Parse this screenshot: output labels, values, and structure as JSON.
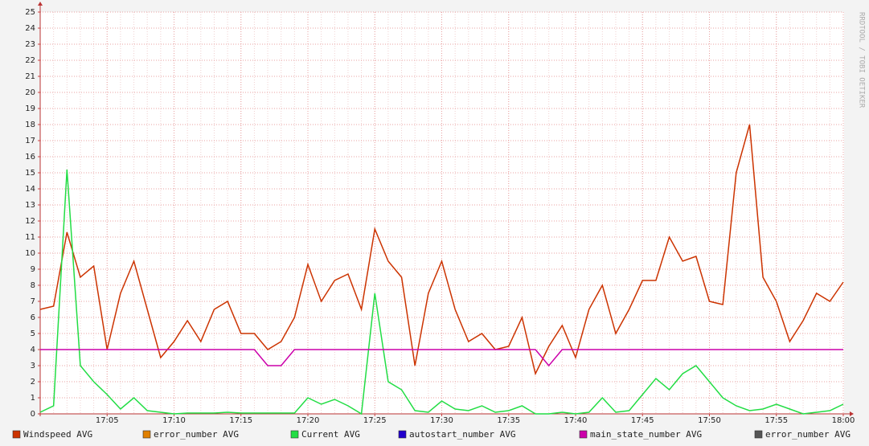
{
  "chart_data": {
    "type": "line",
    "watermark": "RRDTOOL / TOBI OETIKER",
    "x": [
      "17:00",
      "17:01",
      "17:02",
      "17:03",
      "17:04",
      "17:05",
      "17:06",
      "17:07",
      "17:08",
      "17:09",
      "17:10",
      "17:11",
      "17:12",
      "17:13",
      "17:14",
      "17:15",
      "17:16",
      "17:17",
      "17:18",
      "17:19",
      "17:20",
      "17:21",
      "17:22",
      "17:23",
      "17:24",
      "17:25",
      "17:26",
      "17:27",
      "17:28",
      "17:29",
      "17:30",
      "17:31",
      "17:32",
      "17:33",
      "17:34",
      "17:35",
      "17:36",
      "17:37",
      "17:38",
      "17:39",
      "17:40",
      "17:41",
      "17:42",
      "17:43",
      "17:44",
      "17:45",
      "17:46",
      "17:47",
      "17:48",
      "17:49",
      "17:50",
      "17:51",
      "17:52",
      "17:53",
      "17:54",
      "17:55",
      "17:56",
      "17:57",
      "17:58",
      "17:59",
      "18:00"
    ],
    "xlim": [
      "17:00",
      "18:00"
    ],
    "xticks": [
      "17:05",
      "17:10",
      "17:15",
      "17:20",
      "17:25",
      "17:30",
      "17:35",
      "17:40",
      "17:45",
      "17:50",
      "17:55",
      "18:00"
    ],
    "ylim": [
      0,
      25
    ],
    "yticks": [
      0,
      1,
      2,
      3,
      4,
      5,
      6,
      7,
      8,
      9,
      10,
      11,
      12,
      13,
      14,
      15,
      16,
      17,
      18,
      19,
      20,
      21,
      22,
      23,
      24,
      25
    ],
    "grid": true,
    "series": [
      {
        "name": "Windspeed AVG",
        "color": "#cc3300",
        "values": [
          6.5,
          6.7,
          11.3,
          8.5,
          9.2,
          4.0,
          7.5,
          9.5,
          6.5,
          3.5,
          4.5,
          5.8,
          4.5,
          6.5,
          7.0,
          5.0,
          5.0,
          4.0,
          4.5,
          6.0,
          9.3,
          7.0,
          8.3,
          8.7,
          6.5,
          11.5,
          9.5,
          8.5,
          3.0,
          7.5,
          9.5,
          6.5,
          4.5,
          5.0,
          4.0,
          4.2,
          6.0,
          2.5,
          4.2,
          5.5,
          3.5,
          6.5,
          8.0,
          5.0,
          6.5,
          8.3,
          8.3,
          11.0,
          9.5,
          9.8,
          7.0,
          6.8,
          15.0,
          18.0,
          8.5,
          7.0,
          4.5,
          5.8,
          7.5,
          7.0,
          8.2
        ]
      },
      {
        "name": "error_number AVG",
        "color": "#e08000"
      },
      {
        "name": "Current AVG",
        "color": "#22dd44",
        "values": [
          0.1,
          0.5,
          15.2,
          3.0,
          2.0,
          1.2,
          0.3,
          1.0,
          0.2,
          0.1,
          0,
          0.05,
          0.05,
          0.05,
          0.1,
          0.05,
          0.05,
          0.05,
          0.05,
          0.05,
          1.0,
          0.6,
          0.9,
          0.5,
          0,
          7.5,
          2.0,
          1.5,
          0.2,
          0.1,
          0.8,
          0.3,
          0.2,
          0.5,
          0.1,
          0.2,
          0.5,
          0,
          0,
          0.1,
          0,
          0.1,
          1.0,
          0.1,
          0.2,
          1.2,
          2.2,
          1.5,
          2.5,
          3.0,
          2.0,
          1.0,
          0.5,
          0.2,
          0.3,
          0.6,
          0.3,
          0,
          0.1,
          0.2,
          0.6
        ]
      },
      {
        "name": "autostart_number AVG",
        "color": "#2200cc"
      },
      {
        "name": "main_state_number AVG",
        "color": "#cc00aa",
        "values": [
          4,
          4,
          4,
          4,
          4,
          4,
          4,
          4,
          4,
          4,
          4,
          4,
          4,
          4,
          4,
          4,
          4,
          3,
          3,
          4,
          4,
          4,
          4,
          4,
          4,
          4,
          4,
          4,
          4,
          4,
          4,
          4,
          4,
          4,
          4,
          4,
          4,
          4,
          3,
          4,
          4,
          4,
          4,
          4,
          4,
          4,
          4,
          4,
          4,
          4,
          4,
          4,
          4,
          4,
          4,
          4,
          4,
          4,
          4,
          4,
          4
        ]
      },
      {
        "name": "error_number AVG",
        "color": "#555555"
      }
    ]
  }
}
